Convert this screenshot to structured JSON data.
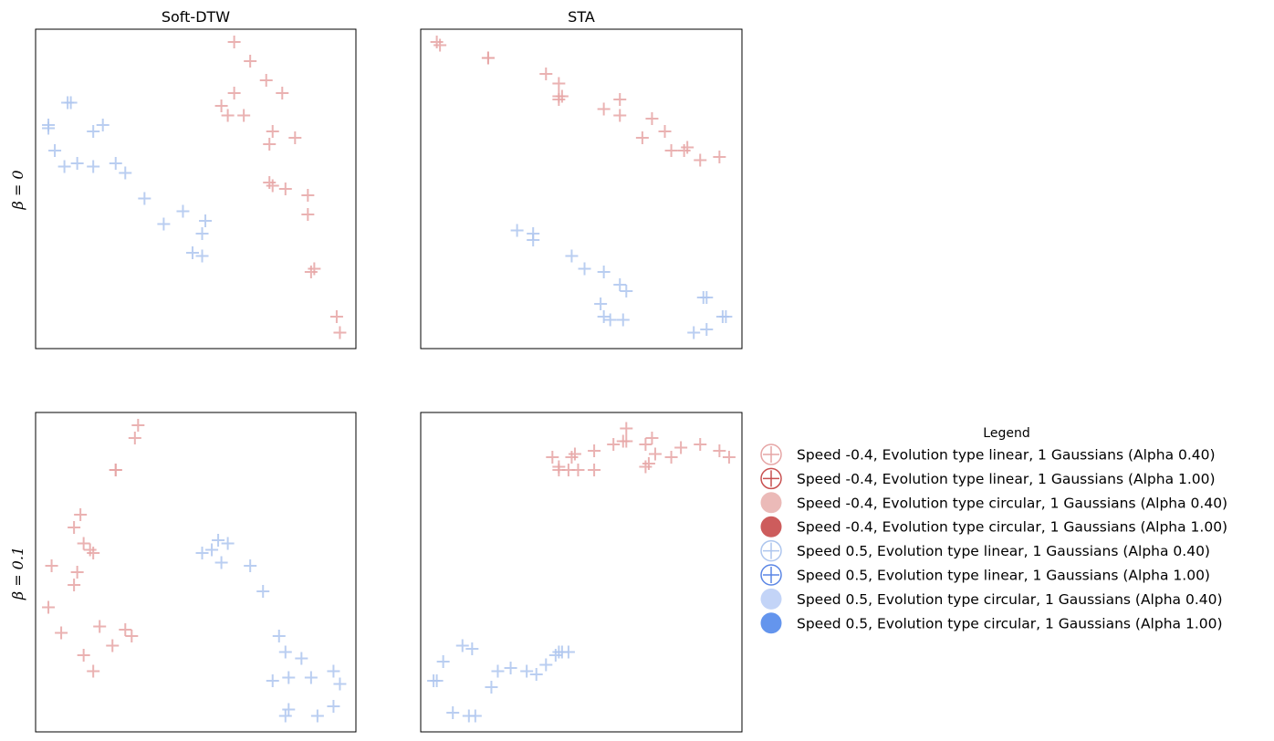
{
  "colors": {
    "red_light": "#e6a5a5",
    "red_full": "#c85050",
    "red_circle_light": "#ebbab8",
    "red_circle_full": "#cd5c5c",
    "blue_light": "#aec6ee",
    "blue_full": "#5b86e5",
    "blue_circle_light": "#c3d4f7",
    "blue_circle_full": "#6495ed"
  },
  "chart_data": [
    {
      "type": "scatter",
      "title": "Soft-DTW",
      "ylabel": "β = 0",
      "grid": false,
      "ticks": false,
      "xlim": [
        0,
        100
      ],
      "ylim": [
        0,
        100
      ],
      "series": [
        {
          "name": "Speed -0.4, Evolution type linear, 1 Gaussians (Alpha 0.40)",
          "color": "#e6a5a5",
          "marker": "plus",
          "points": [
            [
              62,
              96
            ],
            [
              67,
              90
            ],
            [
              72,
              84
            ],
            [
              77,
              80
            ],
            [
              62,
              80
            ],
            [
              58,
              76
            ],
            [
              60,
              73
            ],
            [
              65,
              73
            ],
            [
              74,
              68
            ],
            [
              73,
              64
            ],
            [
              81,
              66
            ],
            [
              73,
              52
            ],
            [
              74,
              51
            ],
            [
              78,
              50
            ],
            [
              85,
              48
            ],
            [
              85,
              42
            ],
            [
              87,
              25
            ],
            [
              86,
              24
            ],
            [
              94,
              10
            ],
            [
              95,
              5
            ]
          ]
        },
        {
          "name": "Speed 0.5, Evolution type linear, 1 Gaussians (Alpha 0.40)",
          "color": "#aec6ee",
          "marker": "plus",
          "points": [
            [
              11,
              77
            ],
            [
              10,
              77
            ],
            [
              4,
              70
            ],
            [
              4,
              69
            ],
            [
              18,
              68
            ],
            [
              21,
              70
            ],
            [
              6,
              62
            ],
            [
              9,
              57
            ],
            [
              13,
              58
            ],
            [
              18,
              57
            ],
            [
              25,
              58
            ],
            [
              28,
              55
            ],
            [
              34,
              47
            ],
            [
              40,
              39
            ],
            [
              46,
              43
            ],
            [
              53,
              40
            ],
            [
              52,
              36
            ],
            [
              49,
              30
            ],
            [
              52,
              29
            ]
          ]
        }
      ]
    },
    {
      "type": "scatter",
      "title": "STA",
      "ylabel": "",
      "grid": false,
      "ticks": false,
      "xlim": [
        0,
        100
      ],
      "ylim": [
        0,
        100
      ],
      "series": [
        {
          "name": "Speed -0.4, Evolution type linear, 1 Gaussians (Alpha 0.40)",
          "color": "#e6a5a5",
          "marker": "plus",
          "points": [
            [
              5,
              96
            ],
            [
              6,
              95
            ],
            [
              21,
              91
            ],
            [
              21,
              91
            ],
            [
              39,
              86
            ],
            [
              43,
              83
            ],
            [
              43,
              79
            ],
            [
              43,
              78
            ],
            [
              44,
              79
            ],
            [
              57,
              75
            ],
            [
              62,
              78
            ],
            [
              62,
              73
            ],
            [
              72,
              72
            ],
            [
              76,
              68
            ],
            [
              69,
              66
            ],
            [
              78,
              62
            ],
            [
              82,
              62
            ],
            [
              83,
              63
            ],
            [
              87,
              59
            ],
            [
              93,
              60
            ]
          ]
        },
        {
          "name": "Speed 0.5, Evolution type linear, 1 Gaussians (Alpha 0.40)",
          "color": "#aec6ee",
          "marker": "plus",
          "points": [
            [
              30,
              37
            ],
            [
              35,
              36
            ],
            [
              35,
              34
            ],
            [
              47,
              29
            ],
            [
              51,
              25
            ],
            [
              57,
              24
            ],
            [
              62,
              20
            ],
            [
              64,
              18
            ],
            [
              56,
              14
            ],
            [
              57,
              10
            ],
            [
              59,
              9
            ],
            [
              63,
              9
            ],
            [
              88,
              16
            ],
            [
              89,
              16
            ],
            [
              95,
              10
            ],
            [
              94,
              10
            ],
            [
              89,
              6
            ],
            [
              85,
              5
            ]
          ]
        }
      ]
    },
    {
      "type": "scatter",
      "title": "",
      "ylabel": "β = 0.1",
      "grid": false,
      "ticks": false,
      "xlim": [
        0,
        100
      ],
      "ylim": [
        0,
        100
      ],
      "series": [
        {
          "name": "Speed -0.4, Evolution type linear, 1 Gaussians (Alpha 0.40)",
          "color": "#e6a5a5",
          "marker": "plus",
          "points": [
            [
              32,
              96
            ],
            [
              31,
              92
            ],
            [
              25,
              82
            ],
            [
              25,
              82
            ],
            [
              14,
              68
            ],
            [
              12,
              64
            ],
            [
              15,
              59
            ],
            [
              17,
              57
            ],
            [
              18,
              56
            ],
            [
              5,
              52
            ],
            [
              13,
              50
            ],
            [
              12,
              46
            ],
            [
              4,
              39
            ],
            [
              8,
              31
            ],
            [
              20,
              33
            ],
            [
              28,
              32
            ],
            [
              30,
              30
            ],
            [
              24,
              27
            ],
            [
              15,
              24
            ],
            [
              18,
              19
            ]
          ]
        },
        {
          "name": "Speed 0.5, Evolution type linear, 1 Gaussians (Alpha 0.40)",
          "color": "#aec6ee",
          "marker": "plus",
          "points": [
            [
              52,
              56
            ],
            [
              55,
              57
            ],
            [
              57,
              60
            ],
            [
              60,
              59
            ],
            [
              58,
              53
            ],
            [
              67,
              52
            ],
            [
              71,
              44
            ],
            [
              76,
              30
            ],
            [
              78,
              25
            ],
            [
              83,
              23
            ],
            [
              79,
              17
            ],
            [
              74,
              16
            ],
            [
              86,
              17
            ],
            [
              93,
              19
            ],
            [
              95,
              15
            ],
            [
              93,
              8
            ],
            [
              79,
              7
            ],
            [
              78,
              5
            ],
            [
              88,
              5
            ]
          ]
        }
      ]
    },
    {
      "type": "scatter",
      "title": "",
      "ylabel": "",
      "grid": false,
      "ticks": false,
      "xlim": [
        0,
        100
      ],
      "ylim": [
        0,
        100
      ],
      "series": [
        {
          "name": "Speed -0.4, Evolution type linear, 1 Gaussians (Alpha 0.40)",
          "color": "#e6a5a5",
          "marker": "plus",
          "points": [
            [
              64,
              95
            ],
            [
              63,
              91
            ],
            [
              64,
              91
            ],
            [
              60,
              90
            ],
            [
              54,
              88
            ],
            [
              48,
              87
            ],
            [
              41,
              86
            ],
            [
              43,
              83
            ],
            [
              47,
              86
            ],
            [
              49,
              82
            ],
            [
              46,
              82
            ],
            [
              43,
              82
            ],
            [
              54,
              82
            ],
            [
              70,
              90
            ],
            [
              72,
              92
            ],
            [
              78,
              86
            ],
            [
              73,
              87
            ],
            [
              81,
              89
            ],
            [
              70,
              83
            ],
            [
              71,
              84
            ],
            [
              87,
              90
            ],
            [
              93,
              88
            ],
            [
              96,
              86
            ]
          ]
        },
        {
          "name": "Speed 0.5, Evolution type linear, 1 Gaussians (Alpha 0.40)",
          "color": "#aec6ee",
          "marker": "plus",
          "points": [
            [
              13,
              27
            ],
            [
              16,
              26
            ],
            [
              7,
              22
            ],
            [
              5,
              16
            ],
            [
              4,
              16
            ],
            [
              24,
              19
            ],
            [
              28,
              20
            ],
            [
              33,
              19
            ],
            [
              36,
              18
            ],
            [
              39,
              21
            ],
            [
              43,
              25
            ],
            [
              44,
              25
            ],
            [
              46,
              25
            ],
            [
              42,
              24
            ],
            [
              22,
              14
            ],
            [
              10,
              6
            ],
            [
              15,
              5
            ],
            [
              17,
              5
            ]
          ]
        }
      ]
    }
  ],
  "legend": {
    "title": "Legend",
    "placement": "right",
    "entries": [
      {
        "label": "Speed -0.4, Evolution type linear, 1 Gaussians (Alpha 0.40)",
        "marker": "circle-plus",
        "color": "#e6a5a5"
      },
      {
        "label": "Speed -0.4, Evolution type linear, 1 Gaussians (Alpha 1.00)",
        "marker": "circle-plus",
        "color": "#c85050"
      },
      {
        "label": "Speed -0.4, Evolution type circular, 1 Gaussians (Alpha 0.40)",
        "marker": "filled-circle",
        "color": "#ebbab8"
      },
      {
        "label": "Speed -0.4, Evolution type circular, 1 Gaussians (Alpha 1.00)",
        "marker": "filled-circle",
        "color": "#cd5c5c"
      },
      {
        "label": "Speed 0.5, Evolution type linear, 1 Gaussians (Alpha 0.40)",
        "marker": "circle-plus",
        "color": "#aec6ee"
      },
      {
        "label": "Speed 0.5, Evolution type linear, 1 Gaussians (Alpha 1.00)",
        "marker": "circle-plus",
        "color": "#5b86e5"
      },
      {
        "label": "Speed 0.5, Evolution type circular, 1 Gaussians (Alpha 0.40)",
        "marker": "filled-circle",
        "color": "#c3d4f7"
      },
      {
        "label": "Speed 0.5, Evolution type circular, 1 Gaussians (Alpha 1.00)",
        "marker": "filled-circle",
        "color": "#6495ed"
      }
    ]
  }
}
